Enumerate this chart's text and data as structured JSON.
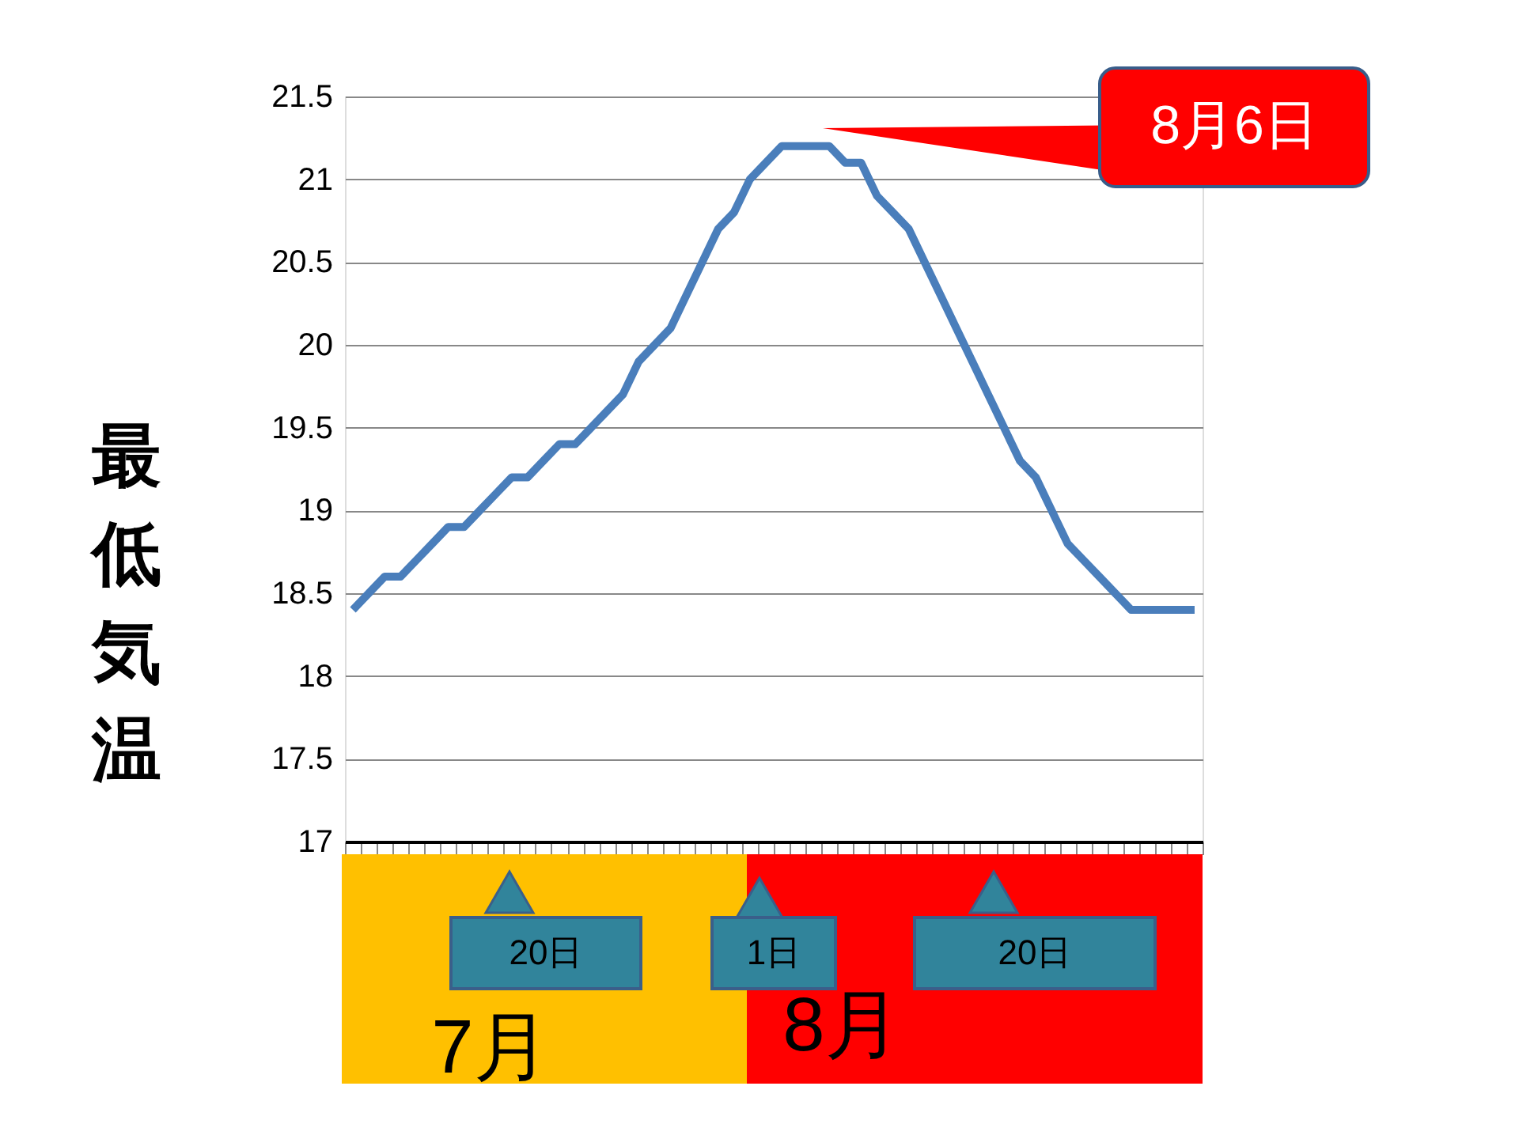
{
  "chart_data": {
    "type": "line",
    "categories": [
      null,
      null,
      null,
      null,
      null,
      null,
      null,
      null,
      null,
      null,
      null,
      null,
      null,
      null,
      null,
      null,
      null,
      null,
      null,
      null,
      null,
      null,
      null,
      null,
      null,
      null,
      null,
      null,
      null,
      null,
      null,
      null,
      null,
      null,
      null,
      null,
      null,
      null,
      null,
      null,
      null,
      null,
      null,
      null,
      null,
      null,
      null,
      null,
      null,
      null,
      null,
      null,
      null,
      null
    ],
    "series": [
      {
        "color": "#4a7ebb",
        "values": [
          18.4,
          18.5,
          18.6,
          18.6,
          18.7,
          18.8,
          18.9,
          18.9,
          19.0,
          19.1,
          19.2,
          19.2,
          19.3,
          19.4,
          19.4,
          19.5,
          19.6,
          19.7,
          19.9,
          20.0,
          20.1,
          20.3,
          20.5,
          20.7,
          20.8,
          21.0,
          21.1,
          21.2,
          21.2,
          21.2,
          21.2,
          21.1,
          21.1,
          20.9,
          20.8,
          20.7,
          20.5,
          20.3,
          20.1,
          19.9,
          19.7,
          19.5,
          19.3,
          19.2,
          19.0,
          18.8,
          18.7,
          18.6,
          18.5,
          18.4,
          18.4,
          18.4,
          18.4,
          18.4
        ]
      }
    ],
    "ylabel": "最低気温",
    "ylim": [
      17,
      21.5
    ],
    "yticks": [
      17,
      17.5,
      18,
      18.5,
      19,
      19.5,
      20,
      20.5,
      21,
      21.5
    ],
    "grid": "y",
    "legend": false,
    "tick_labels": "y",
    "marker": "none",
    "line_style": "solid",
    "annotations": [
      "20日",
      "1日",
      "20日",
      "7月",
      "8月",
      "8月6日"
    ]
  }
}
